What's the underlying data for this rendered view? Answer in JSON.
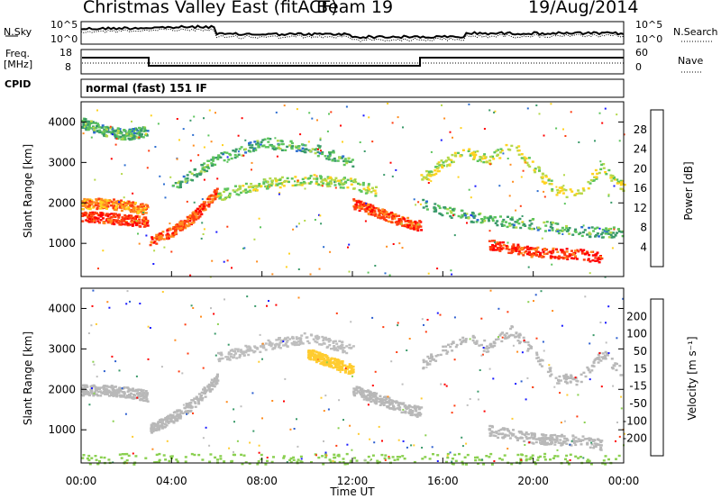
{
  "header": {
    "site_title": "Christmas Valley East (fitACF)",
    "beam": "Beam 19",
    "date": "19/Aug/2014"
  },
  "strips": {
    "nsky_label": "N.Sky",
    "nsearch_label": "N.Search",
    "noise_ticks": [
      "10^5",
      "10^0"
    ],
    "freq_label_1": "Freq.",
    "freq_label_2": "[MHz]",
    "freq_ticks": [
      "18",
      "8"
    ],
    "nave_label": "Nave",
    "nave_ticks": [
      "60",
      "0"
    ],
    "cpid_label": "CPID",
    "cpid_value": "normal (fast) 151 IF"
  },
  "axes": {
    "xlabel": "Time UT",
    "ylabel": "Slant Range [km]",
    "x_ticks": [
      "00:00",
      "04:00",
      "08:00",
      "12:00",
      "16:00",
      "20:00",
      "00:00"
    ],
    "y_ticks": [
      "4000",
      "3000",
      "2000",
      "1000"
    ],
    "power_colorbar_label": "Power [dB]",
    "velocity_colorbar_label": "Velocity [m s⁻¹]"
  },
  "colors": {
    "power_scale": [
      "#1a1aff",
      "#2d6ed0",
      "#3a9a6a",
      "#5cc45c",
      "#b4d84a",
      "#ffd21e",
      "#ff8c1e",
      "#ff3c10",
      "#ff0000"
    ],
    "velocity_scale": [
      "#1a1aff",
      "#2d5fd0",
      "#3a9a6a",
      "#8ad050",
      "#bebebe",
      "#bebebe",
      "#ffcc30",
      "#ff8c1e",
      "#ff3c10",
      "#ff0000"
    ],
    "ground_scatter_gray": "#b8b8b8"
  },
  "chart_data": [
    {
      "type": "heatmap",
      "name": "power",
      "x_range_hours": [
        0,
        24
      ],
      "ylim": [
        180,
        4500
      ],
      "colorbar_ticks": [
        "28",
        "24",
        "20",
        "16",
        "12",
        "8",
        "4"
      ],
      "colorbar_range": [
        0,
        30
      ],
      "scatter_bands": [
        {
          "x": [
            0,
            1,
            2,
            2.9
          ],
          "y": [
            2000,
            2000,
            1950,
            1850
          ],
          "value": 22
        },
        {
          "x": [
            0,
            1,
            2,
            2.9
          ],
          "y": [
            1700,
            1650,
            1600,
            1550
          ],
          "value": 26
        },
        {
          "x": [
            0,
            1,
            2,
            2.9
          ],
          "y": [
            4000,
            3800,
            3700,
            3800
          ],
          "value": 10
        },
        {
          "x": [
            3,
            4,
            5,
            6
          ],
          "y": [
            1050,
            1300,
            1700,
            2300
          ],
          "value": 24
        },
        {
          "x": [
            4,
            6,
            8,
            10,
            12
          ],
          "y": [
            2400,
            3100,
            3500,
            3400,
            3000
          ],
          "value": 10
        },
        {
          "x": [
            6,
            8,
            10,
            12,
            13
          ],
          "y": [
            2200,
            2500,
            2600,
            2500,
            2300
          ],
          "value": 14
        },
        {
          "x": [
            12,
            13,
            14,
            15
          ],
          "y": [
            2000,
            1800,
            1600,
            1450
          ],
          "value": 24
        },
        {
          "x": [
            15,
            16,
            17,
            18,
            19,
            20,
            21,
            22,
            23,
            24
          ],
          "y": [
            2600,
            3000,
            3300,
            3050,
            3500,
            2900,
            2300,
            2250,
            2900,
            2400
          ],
          "value": 16
        },
        {
          "x": [
            15,
            16,
            18,
            20,
            22,
            24
          ],
          "y": [
            2000,
            1800,
            1600,
            1500,
            1300,
            1300
          ],
          "value": 10
        },
        {
          "x": [
            18,
            20,
            22,
            23
          ],
          "y": [
            1000,
            800,
            750,
            650
          ],
          "value": 26
        }
      ]
    },
    {
      "type": "heatmap",
      "name": "velocity",
      "x_range_hours": [
        0,
        24
      ],
      "ylim": [
        180,
        4500
      ],
      "colorbar_ticks": [
        "200",
        "100",
        "50",
        "15",
        "-15",
        "-50",
        "-100",
        "-200"
      ],
      "colorbar_range": [
        -250,
        250
      ],
      "scatter_bands": [
        {
          "x": [
            0,
            1,
            2,
            2.9
          ],
          "y": [
            2000,
            2000,
            1950,
            1850
          ],
          "value": 0
        },
        {
          "x": [
            3,
            4,
            5,
            6
          ],
          "y": [
            1050,
            1300,
            1700,
            2300
          ],
          "value": 0
        },
        {
          "x": [
            6,
            8,
            10,
            12
          ],
          "y": [
            2800,
            3100,
            3300,
            3000
          ],
          "value": -40
        },
        {
          "x": [
            10,
            11,
            12
          ],
          "y": [
            2900,
            2700,
            2500
          ],
          "value": 60
        },
        {
          "x": [
            12,
            13,
            14,
            15
          ],
          "y": [
            2000,
            1800,
            1600,
            1450
          ],
          "value": 0
        },
        {
          "x": [
            15,
            16,
            17,
            18,
            19,
            20,
            21,
            22,
            23,
            24
          ],
          "y": [
            2600,
            3000,
            3300,
            3050,
            3500,
            2900,
            2300,
            2250,
            2900,
            2400
          ],
          "value": 0
        },
        {
          "x": [
            18,
            20,
            22,
            23
          ],
          "y": [
            1000,
            800,
            750,
            650
          ],
          "value": 0
        },
        {
          "x": [
            0,
            6,
            12,
            18,
            24
          ],
          "y": [
            300,
            300,
            300,
            300,
            300
          ],
          "value": -60
        }
      ]
    }
  ]
}
